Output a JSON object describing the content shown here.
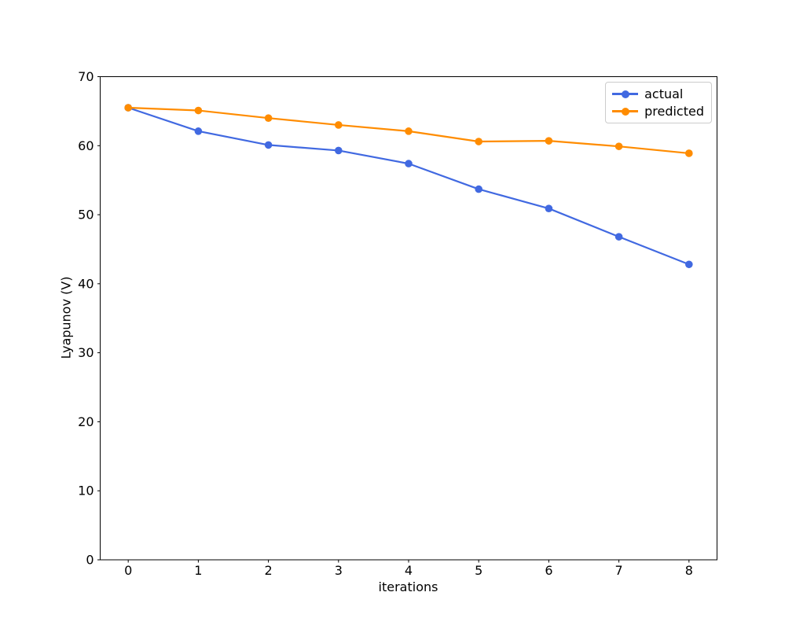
{
  "figure": {
    "background": "#ffffff",
    "spine_color": "#000000",
    "tick_color": "#000000"
  },
  "chart_data": {
    "type": "line",
    "title": "",
    "xlabel": "iterations",
    "ylabel": "Lyapunov (V)",
    "x": [
      0,
      1,
      2,
      3,
      4,
      5,
      6,
      7,
      8
    ],
    "series": [
      {
        "name": "actual",
        "color": "#4169e1",
        "values": [
          65.5,
          62.1,
          60.1,
          59.3,
          57.4,
          53.7,
          50.9,
          46.8,
          42.8
        ]
      },
      {
        "name": "predicted",
        "color": "#ff8c00",
        "values": [
          65.5,
          65.1,
          64.0,
          63.0,
          62.1,
          60.6,
          60.7,
          59.9,
          58.9
        ]
      }
    ],
    "x_ticks": [
      0,
      1,
      2,
      3,
      4,
      5,
      6,
      7,
      8
    ],
    "y_ticks": [
      0,
      10,
      20,
      30,
      40,
      50,
      60,
      70
    ],
    "xlim": [
      -0.4,
      8.4
    ],
    "ylim": [
      0,
      70
    ],
    "grid": false,
    "legend_position": "upper right",
    "marker": "o"
  }
}
